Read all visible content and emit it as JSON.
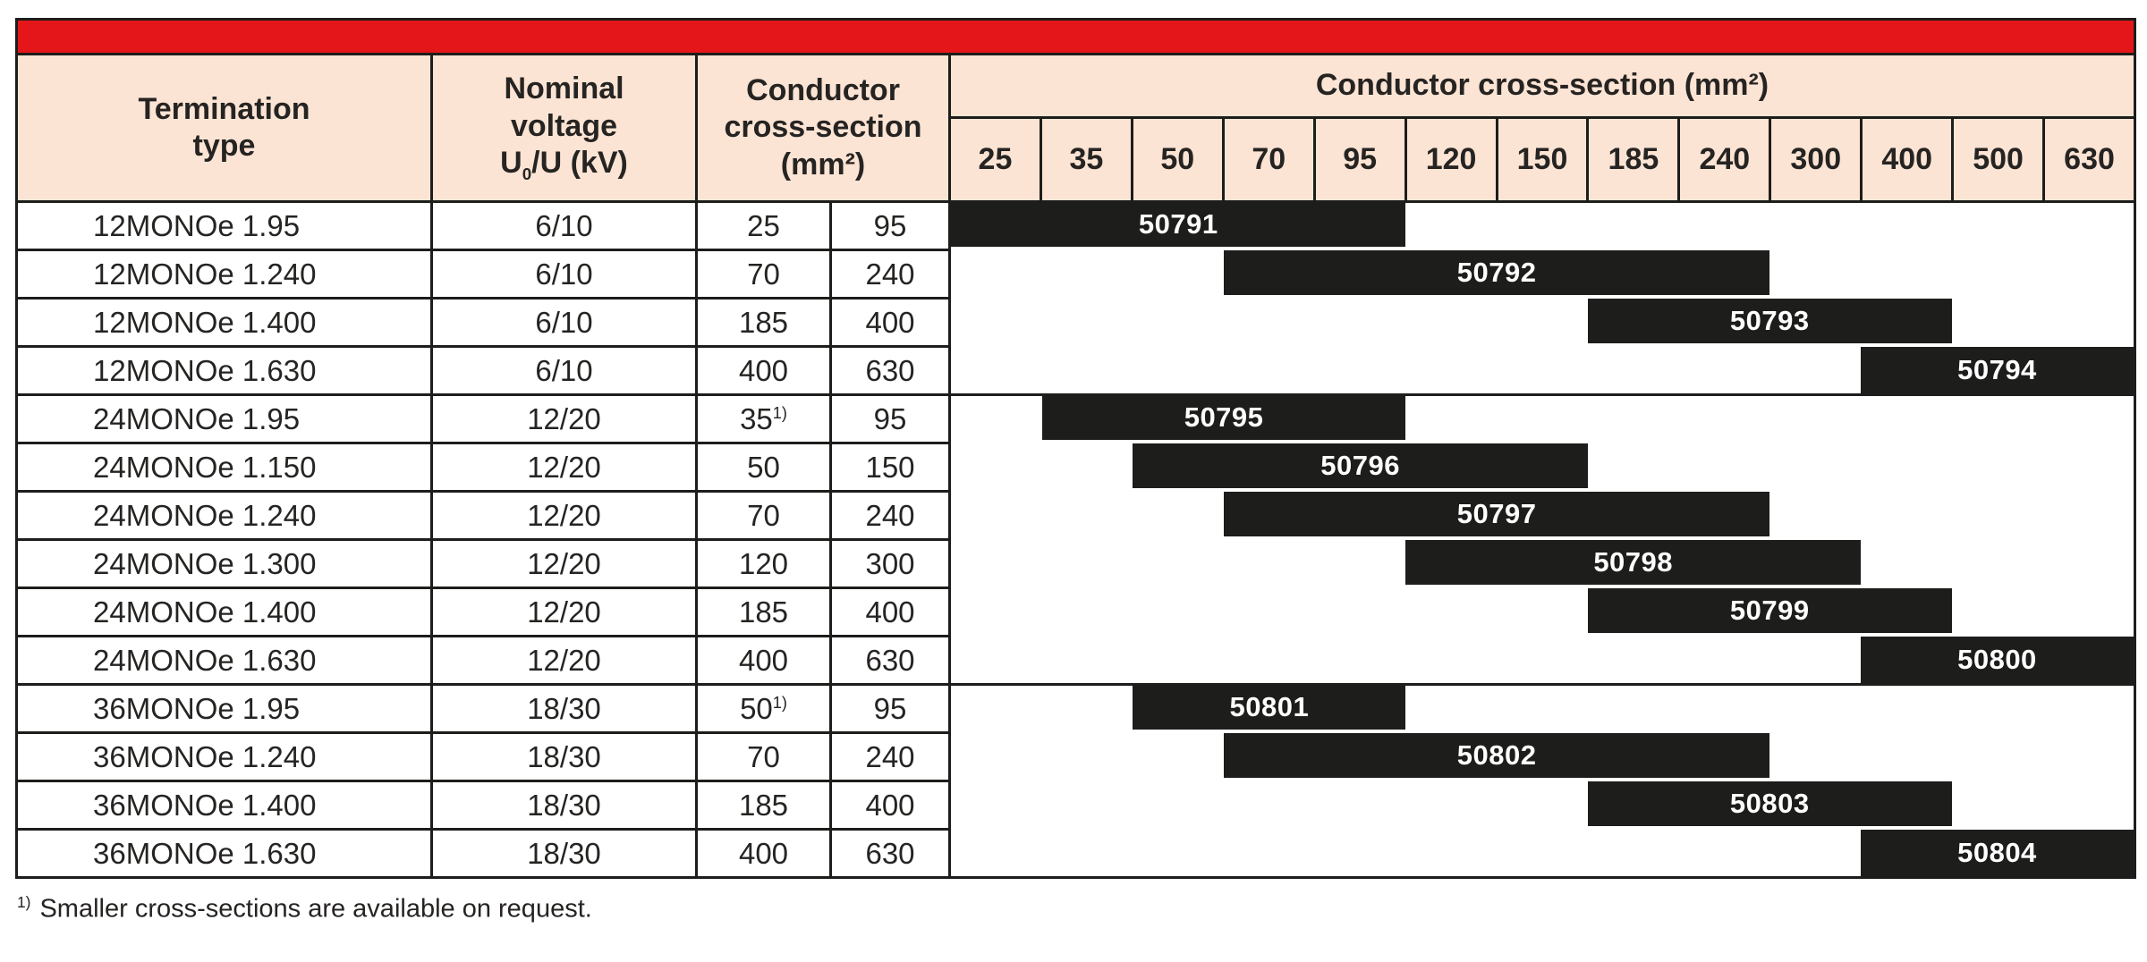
{
  "colors": {
    "red": "#e41619",
    "peach": "#fce4d4",
    "ink": "#1d1d1b",
    "text": "#262422"
  },
  "table": {
    "header": {
      "termination": {
        "line1": "Termination",
        "line2": "type"
      },
      "voltage": {
        "line1": "Nominal",
        "line2": "voltage",
        "formula_base": "U",
        "formula_sub": "0",
        "formula_rest": "/U (kV)"
      },
      "conductor": {
        "line1": "Conductor",
        "line2": "cross-section",
        "line3": "(mm²)"
      },
      "span_label": "Conductor cross-section (mm²)",
      "sizes": [
        "25",
        "35",
        "50",
        "70",
        "95",
        "120",
        "150",
        "185",
        "240",
        "300",
        "400",
        "500",
        "630"
      ]
    },
    "rows": [
      {
        "type": "12MONOe 1.95",
        "voltage": "6/10",
        "min": "25",
        "max": "95",
        "code": "50791",
        "bar_from": "25",
        "bar_to": "95",
        "group_end": false
      },
      {
        "type": "12MONOe 1.240",
        "voltage": "6/10",
        "min": "70",
        "max": "240",
        "code": "50792",
        "bar_from": "70",
        "bar_to": "240",
        "group_end": false
      },
      {
        "type": "12MONOe 1.400",
        "voltage": "6/10",
        "min": "185",
        "max": "400",
        "code": "50793",
        "bar_from": "185",
        "bar_to": "400",
        "group_end": false
      },
      {
        "type": "12MONOe 1.630",
        "voltage": "6/10",
        "min": "400",
        "max": "630",
        "code": "50794",
        "bar_from": "400",
        "bar_to": "630",
        "group_end": true
      },
      {
        "type": "24MONOe 1.95",
        "voltage": "12/20",
        "min": "35",
        "min_sup": "1)",
        "max": "95",
        "code": "50795",
        "bar_from": "35",
        "bar_to": "95",
        "group_end": false
      },
      {
        "type": "24MONOe 1.150",
        "voltage": "12/20",
        "min": "50",
        "max": "150",
        "code": "50796",
        "bar_from": "50",
        "bar_to": "150",
        "group_end": false
      },
      {
        "type": "24MONOe 1.240",
        "voltage": "12/20",
        "min": "70",
        "max": "240",
        "code": "50797",
        "bar_from": "70",
        "bar_to": "240",
        "group_end": false
      },
      {
        "type": "24MONOe 1.300",
        "voltage": "12/20",
        "min": "120",
        "max": "300",
        "code": "50798",
        "bar_from": "120",
        "bar_to": "300",
        "group_end": false
      },
      {
        "type": "24MONOe 1.400",
        "voltage": "12/20",
        "min": "185",
        "max": "400",
        "code": "50799",
        "bar_from": "185",
        "bar_to": "400",
        "group_end": false
      },
      {
        "type": "24MONOe 1.630",
        "voltage": "12/20",
        "min": "400",
        "max": "630",
        "code": "50800",
        "bar_from": "400",
        "bar_to": "630",
        "group_end": true
      },
      {
        "type": "36MONOe 1.95",
        "voltage": "18/30",
        "min": "50",
        "min_sup": "1)",
        "max": "95",
        "code": "50801",
        "bar_from": "50",
        "bar_to": "95",
        "group_end": false
      },
      {
        "type": "36MONOe 1.240",
        "voltage": "18/30",
        "min": "70",
        "max": "240",
        "code": "50802",
        "bar_from": "70",
        "bar_to": "240",
        "group_end": false
      },
      {
        "type": "36MONOe 1.400",
        "voltage": "18/30",
        "min": "185",
        "max": "400",
        "code": "50803",
        "bar_from": "185",
        "bar_to": "400",
        "group_end": false
      },
      {
        "type": "36MONOe 1.630",
        "voltage": "18/30",
        "min": "400",
        "max": "630",
        "code": "50804",
        "bar_from": "400",
        "bar_to": "630",
        "group_end": false
      }
    ]
  },
  "footnote": {
    "sup": "1)",
    "text": "Smaller cross-sections are available on request."
  }
}
